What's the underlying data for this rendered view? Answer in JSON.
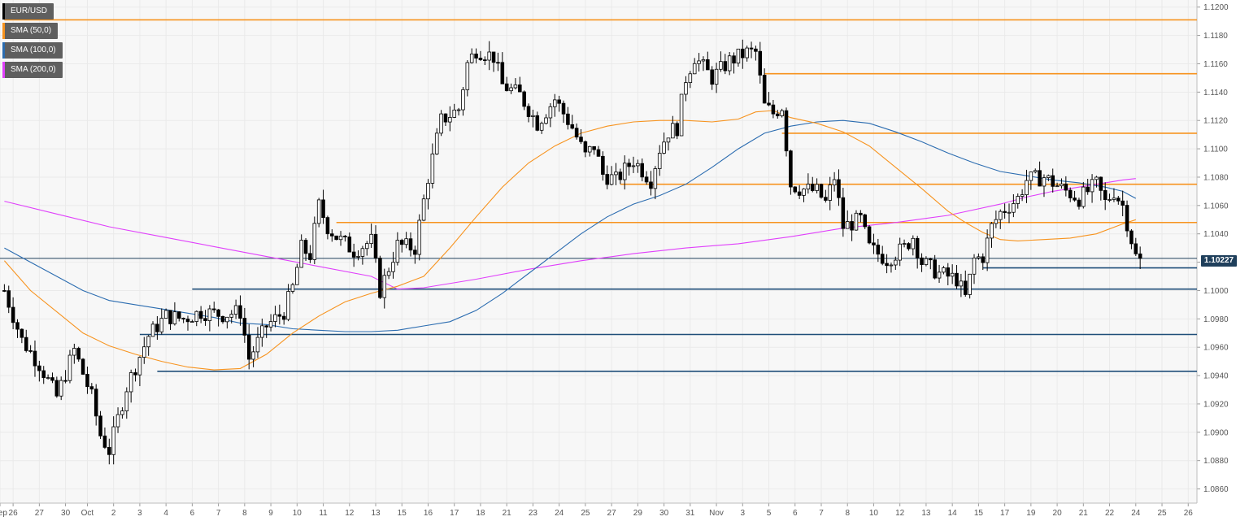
{
  "chart_data": {
    "type": "candlestick",
    "symbol": "EUR/USD",
    "timeframe_hint": "4-hour",
    "colors": {
      "up_candle": "#ffffff",
      "down_candle": "#000000",
      "sma50": "#f7931e",
      "sma100": "#2b6cb0",
      "sma200": "#e040fb",
      "resistance_lines": "#f7931e",
      "support_lines": "#1f4e79",
      "current_price_line": "#1f3f5b",
      "background": "#ffffff",
      "plot_area": "#f7f7f7",
      "grid": "#eaeaea"
    },
    "legend": [
      {
        "label": "EUR/USD",
        "color": "#000000"
      },
      {
        "label": "SMA (50,0)",
        "color": "#f7931e"
      },
      {
        "label": "SMA (100,0)",
        "color": "#2b6cb0"
      },
      {
        "label": "SMA (200,0)",
        "color": "#e040fb"
      }
    ],
    "current_price": 1.10227,
    "current_price_label": "1.10227",
    "ylim": [
      1.085,
      1.1205
    ],
    "y_ticks": [
      1.086,
      1.088,
      1.09,
      1.092,
      1.094,
      1.096,
      1.098,
      1.1,
      1.102,
      1.104,
      1.106,
      1.108,
      1.11,
      1.112,
      1.114,
      1.116,
      1.118,
      1.12
    ],
    "y_tick_labels": [
      "1.0860",
      "1.0880",
      "1.0900",
      "1.0920",
      "1.0940",
      "1.0960",
      "1.0980",
      "1.1000",
      "1.1020",
      "1.1040",
      "1.1060",
      "1.1080",
      "1.1100",
      "1.1120",
      "1.1140",
      "1.1160",
      "1.1180",
      "1.1200"
    ],
    "x_tick_labels": [
      "Sep",
      "26",
      "27",
      "30",
      "Oct",
      "2",
      "3",
      "4",
      "6",
      "7",
      "8",
      "9",
      "10",
      "11",
      "12",
      "13",
      "15",
      "16",
      "17",
      "18",
      "21",
      "23",
      "24",
      "25",
      "27",
      "29",
      "30",
      "31",
      "Nov",
      "3",
      "5",
      "6",
      "7",
      "8",
      "10",
      "12",
      "13",
      "14",
      "15",
      "17",
      "19",
      "20",
      "21",
      "22",
      "24",
      "25",
      "26"
    ],
    "x_tick_index": [
      -1,
      2,
      8,
      14,
      19,
      25,
      31,
      37,
      43,
      49,
      55,
      61,
      67,
      73,
      79,
      85,
      91,
      97,
      103,
      109,
      115,
      121,
      127,
      133,
      139,
      145,
      151,
      157,
      163,
      169,
      175,
      181,
      187,
      193,
      199,
      205,
      211,
      217,
      223,
      229,
      235,
      241,
      247,
      253,
      259,
      265,
      271
    ],
    "x_range": [
      -1,
      273
    ],
    "horizontal_levels": [
      {
        "kind": "resistance",
        "price": 1.1191,
        "start_index": 0
      },
      {
        "kind": "resistance",
        "price": 1.1153,
        "start_index": 174
      },
      {
        "kind": "resistance",
        "price": 1.1111,
        "start_index": 178
      },
      {
        "kind": "resistance",
        "price": 1.1075,
        "start_index": 141
      },
      {
        "kind": "resistance",
        "price": 1.1048,
        "start_index": 76
      },
      {
        "kind": "support",
        "price": 1.1016,
        "start_index": 224
      },
      {
        "kind": "support",
        "price": 1.1001,
        "start_index": 43
      },
      {
        "kind": "support",
        "price": 1.0969,
        "start_index": 31
      },
      {
        "kind": "support",
        "price": 1.0943,
        "start_index": 35
      }
    ],
    "candle_anchors": [
      [
        0,
        1.1
      ],
      [
        4,
        1.0965
      ],
      [
        8,
        1.0948
      ],
      [
        12,
        1.0925
      ],
      [
        16,
        1.0958
      ],
      [
        20,
        1.0925
      ],
      [
        22,
        1.0898
      ],
      [
        24,
        1.0887
      ],
      [
        28,
        1.0932
      ],
      [
        33,
        1.0968
      ],
      [
        37,
        1.0982
      ],
      [
        41,
        1.098
      ],
      [
        45,
        1.0985
      ],
      [
        50,
        1.0983
      ],
      [
        54,
        1.0985
      ],
      [
        56,
        1.0952
      ],
      [
        60,
        1.0975
      ],
      [
        64,
        1.0985
      ],
      [
        66,
        1.1002
      ],
      [
        68,
        1.103
      ],
      [
        70,
        1.1025
      ],
      [
        72,
        1.106
      ],
      [
        74,
        1.1045
      ],
      [
        76,
        1.1038
      ],
      [
        80,
        1.1028
      ],
      [
        84,
        1.1035
      ],
      [
        86,
        1.1
      ],
      [
        90,
        1.1032
      ],
      [
        94,
        1.103
      ],
      [
        97,
        1.108
      ],
      [
        100,
        1.112
      ],
      [
        104,
        1.1128
      ],
      [
        106,
        1.116
      ],
      [
        108,
        1.117
      ],
      [
        112,
        1.1165
      ],
      [
        114,
        1.1145
      ],
      [
        118,
        1.1138
      ],
      [
        122,
        1.1118
      ],
      [
        126,
        1.1135
      ],
      [
        130,
        1.1115
      ],
      [
        133,
        1.1095
      ],
      [
        135,
        1.1102
      ],
      [
        137,
        1.1082
      ],
      [
        140,
        1.1078
      ],
      [
        144,
        1.1092
      ],
      [
        148,
        1.1078
      ],
      [
        150,
        1.11
      ],
      [
        152,
        1.1112
      ],
      [
        154,
        1.1115
      ],
      [
        156,
        1.115
      ],
      [
        158,
        1.1165
      ],
      [
        162,
        1.115
      ],
      [
        166,
        1.1162
      ],
      [
        170,
        1.1168
      ],
      [
        172,
        1.1168
      ],
      [
        174,
        1.113
      ],
      [
        176,
        1.1125
      ],
      [
        178,
        1.113
      ],
      [
        180,
        1.1075
      ],
      [
        182,
        1.1072
      ],
      [
        186,
        1.107
      ],
      [
        188,
        1.1062
      ],
      [
        190,
        1.108
      ],
      [
        192,
        1.1045
      ],
      [
        196,
        1.105
      ],
      [
        198,
        1.103
      ],
      [
        202,
        1.1022
      ],
      [
        206,
        1.103
      ],
      [
        208,
        1.1038
      ],
      [
        210,
        1.102
      ],
      [
        214,
        1.1012
      ],
      [
        218,
        1.1008
      ],
      [
        220,
        1.0995
      ],
      [
        222,
        1.1022
      ],
      [
        224,
        1.1024
      ],
      [
        226,
        1.1045
      ],
      [
        228,
        1.1055
      ],
      [
        232,
        1.1065
      ],
      [
        234,
        1.1078
      ],
      [
        238,
        1.108
      ],
      [
        242,
        1.1072
      ],
      [
        246,
        1.1065
      ],
      [
        250,
        1.1075
      ],
      [
        252,
        1.1062
      ],
      [
        254,
        1.107
      ],
      [
        256,
        1.106
      ],
      [
        258,
        1.1036
      ],
      [
        259,
        1.1024
      ],
      [
        260,
        1.1023
      ]
    ],
    "sma50": [
      [
        0,
        1.1021
      ],
      [
        6,
        1.1
      ],
      [
        12,
        1.0985
      ],
      [
        18,
        1.097
      ],
      [
        24,
        1.0961
      ],
      [
        30,
        1.0955
      ],
      [
        36,
        1.095
      ],
      [
        42,
        1.0946
      ],
      [
        48,
        1.0944
      ],
      [
        54,
        1.0945
      ],
      [
        60,
        1.0955
      ],
      [
        66,
        1.097
      ],
      [
        72,
        1.0982
      ],
      [
        78,
        1.0992
      ],
      [
        84,
        1.0998
      ],
      [
        90,
        1.1003
      ],
      [
        96,
        1.101
      ],
      [
        102,
        1.103
      ],
      [
        108,
        1.1052
      ],
      [
        114,
        1.1073
      ],
      [
        120,
        1.109
      ],
      [
        126,
        1.1102
      ],
      [
        132,
        1.1111
      ],
      [
        138,
        1.1116
      ],
      [
        144,
        1.1119
      ],
      [
        150,
        1.112
      ],
      [
        156,
        1.112
      ],
      [
        162,
        1.1119
      ],
      [
        168,
        1.1121
      ],
      [
        172,
        1.1126
      ],
      [
        176,
        1.1127
      ],
      [
        180,
        1.1122
      ],
      [
        186,
        1.1118
      ],
      [
        192,
        1.1112
      ],
      [
        198,
        1.1102
      ],
      [
        204,
        1.1087
      ],
      [
        210,
        1.1072
      ],
      [
        216,
        1.1056
      ],
      [
        220,
        1.1048
      ],
      [
        224,
        1.1041
      ],
      [
        228,
        1.1036
      ],
      [
        232,
        1.1035
      ],
      [
        238,
        1.1036
      ],
      [
        244,
        1.1037
      ],
      [
        250,
        1.104
      ],
      [
        256,
        1.1047
      ],
      [
        259,
        1.105
      ]
    ],
    "sma100": [
      [
        0,
        1.103
      ],
      [
        6,
        1.102
      ],
      [
        12,
        1.101
      ],
      [
        18,
        1.1
      ],
      [
        24,
        1.0993
      ],
      [
        30,
        1.099
      ],
      [
        36,
        1.0987
      ],
      [
        42,
        1.0984
      ],
      [
        48,
        1.0981
      ],
      [
        54,
        1.0977
      ],
      [
        60,
        1.0976
      ],
      [
        66,
        1.0973
      ],
      [
        72,
        1.0972
      ],
      [
        78,
        1.0971
      ],
      [
        84,
        1.0971
      ],
      [
        90,
        1.0972
      ],
      [
        96,
        1.0975
      ],
      [
        102,
        1.0978
      ],
      [
        108,
        1.0986
      ],
      [
        114,
        1.0998
      ],
      [
        120,
        1.1012
      ],
      [
        126,
        1.1026
      ],
      [
        132,
        1.104
      ],
      [
        138,
        1.1052
      ],
      [
        144,
        1.1061
      ],
      [
        150,
        1.1067
      ],
      [
        156,
        1.1075
      ],
      [
        162,
        1.1087
      ],
      [
        168,
        1.11
      ],
      [
        174,
        1.1111
      ],
      [
        180,
        1.1116
      ],
      [
        186,
        1.1119
      ],
      [
        192,
        1.112
      ],
      [
        198,
        1.1118
      ],
      [
        204,
        1.1112
      ],
      [
        210,
        1.1105
      ],
      [
        216,
        1.1097
      ],
      [
        222,
        1.109
      ],
      [
        228,
        1.1084
      ],
      [
        234,
        1.1081
      ],
      [
        240,
        1.1078
      ],
      [
        246,
        1.1076
      ],
      [
        252,
        1.1073
      ],
      [
        256,
        1.107
      ],
      [
        259,
        1.1065
      ]
    ],
    "sma200": [
      [
        0,
        1.1063
      ],
      [
        12,
        1.1054
      ],
      [
        24,
        1.1045
      ],
      [
        36,
        1.1038
      ],
      [
        48,
        1.1031
      ],
      [
        60,
        1.1024
      ],
      [
        72,
        1.1017
      ],
      [
        84,
        1.101
      ],
      [
        90,
        1.1001
      ],
      [
        96,
        1.1002
      ],
      [
        108,
        1.1008
      ],
      [
        120,
        1.1015
      ],
      [
        132,
        1.1021
      ],
      [
        144,
        1.1026
      ],
      [
        156,
        1.103
      ],
      [
        168,
        1.1033
      ],
      [
        180,
        1.1038
      ],
      [
        192,
        1.1044
      ],
      [
        204,
        1.1048
      ],
      [
        216,
        1.1053
      ],
      [
        228,
        1.1061
      ],
      [
        234,
        1.1066
      ],
      [
        240,
        1.107
      ],
      [
        246,
        1.1073
      ],
      [
        252,
        1.1076
      ],
      [
        256,
        1.1078
      ],
      [
        259,
        1.1079
      ]
    ]
  }
}
